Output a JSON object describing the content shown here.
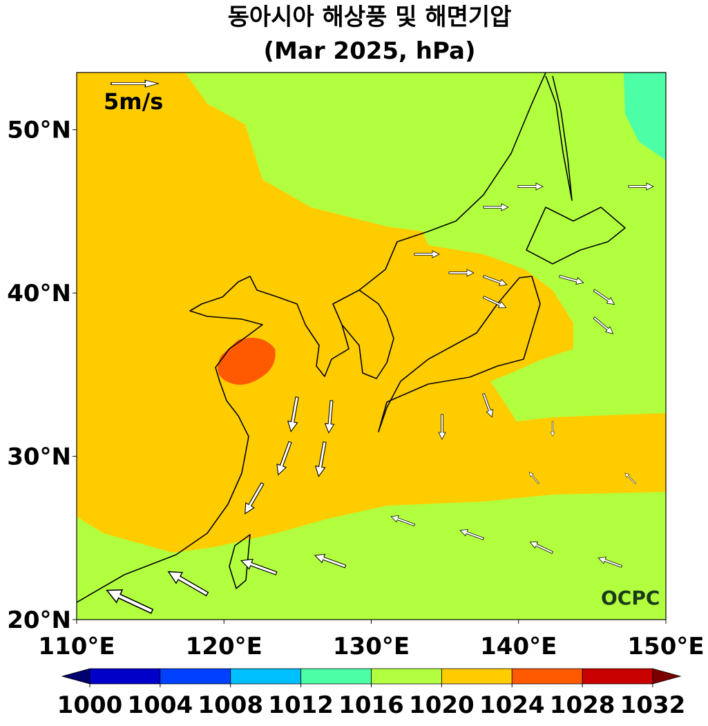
{
  "chart_data": {
    "type": "map",
    "title": "동아시아 해상풍 및 해면기압",
    "subtitle": "(Mar 2025, hPa)",
    "xlim": [
      110,
      150
    ],
    "ylim": [
      20,
      53.5
    ],
    "xticks": [
      {
        "value": 110,
        "label": "110°E"
      },
      {
        "value": 120,
        "label": "120°E"
      },
      {
        "value": 130,
        "label": "130°E"
      },
      {
        "value": 140,
        "label": "140°E"
      },
      {
        "value": 150,
        "label": "150°E"
      }
    ],
    "yticks": [
      {
        "value": 20,
        "label": "20°N"
      },
      {
        "value": 30,
        "label": "30°N"
      },
      {
        "value": 40,
        "label": "40°N"
      },
      {
        "value": 50,
        "label": "50°N"
      }
    ],
    "reference_vector_label": "5m/s",
    "watermark": "OCPC",
    "colorbar": {
      "levels": [
        1000,
        1004,
        1008,
        1012,
        1016,
        1020,
        1024,
        1028,
        1032
      ],
      "colors": [
        "#0000c8",
        "#0040ff",
        "#00bfff",
        "#4cffa6",
        "#b2ff40",
        "#ffcc00",
        "#ff5a00",
        "#c80000"
      ],
      "extend_colors": [
        "#00006e",
        "#7a0000"
      ]
    }
  }
}
